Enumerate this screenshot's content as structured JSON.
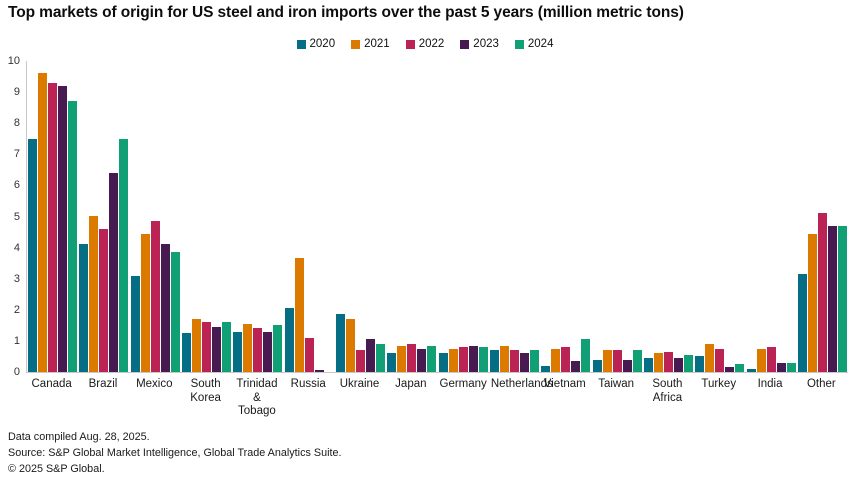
{
  "footer": {
    "compiled": "Data compiled Aug. 28, 2025.",
    "source": "Source: S&P Global Market Intelligence, Global Trade Analytics Suite.",
    "copyright": "© 2025 S&P Global."
  },
  "chart_data": {
    "type": "bar",
    "title": "Top markets of origin for US steel and iron imports over the past 5 years (million metric tons)",
    "xlabel": "",
    "ylabel": "",
    "ylim": [
      0,
      10
    ],
    "ytick_step": 1,
    "grid": false,
    "legend_position": "top-center",
    "categories": [
      "Canada",
      "Brazil",
      "Mexico",
      "South Korea",
      "Trinidad & Tobago",
      "Russia",
      "Ukraine",
      "Japan",
      "Germany",
      "Netherlands",
      "Vietnam",
      "Taiwan",
      "South Africa",
      "Turkey",
      "India",
      "Other"
    ],
    "series": [
      {
        "name": "2020",
        "color": "#056e85",
        "values": [
          7.5,
          4.1,
          3.1,
          1.25,
          1.3,
          2.05,
          1.85,
          0.6,
          0.6,
          0.7,
          0.2,
          0.4,
          0.45,
          0.5,
          0.1,
          3.15
        ]
      },
      {
        "name": "2021",
        "color": "#dc7a00",
        "values": [
          9.6,
          5.0,
          4.45,
          1.7,
          1.55,
          3.65,
          1.7,
          0.85,
          0.75,
          0.85,
          0.75,
          0.7,
          0.6,
          0.9,
          0.75,
          4.45
        ]
      },
      {
        "name": "2022",
        "color": "#bb2355",
        "values": [
          9.3,
          4.6,
          4.85,
          1.6,
          1.4,
          1.1,
          0.7,
          0.9,
          0.8,
          0.7,
          0.8,
          0.7,
          0.65,
          0.75,
          0.8,
          5.1
        ]
      },
      {
        "name": "2023",
        "color": "#471a51",
        "values": [
          9.2,
          6.4,
          4.1,
          1.45,
          1.3,
          0.05,
          1.05,
          0.75,
          0.85,
          0.6,
          0.35,
          0.4,
          0.45,
          0.15,
          0.3,
          4.7
        ]
      },
      {
        "name": "2024",
        "color": "#11a076",
        "values": [
          8.7,
          7.5,
          3.85,
          1.6,
          1.5,
          0,
          0.9,
          0.85,
          0.8,
          0.7,
          1.05,
          0.7,
          0.55,
          0.25,
          0.3,
          4.7
        ]
      }
    ]
  }
}
